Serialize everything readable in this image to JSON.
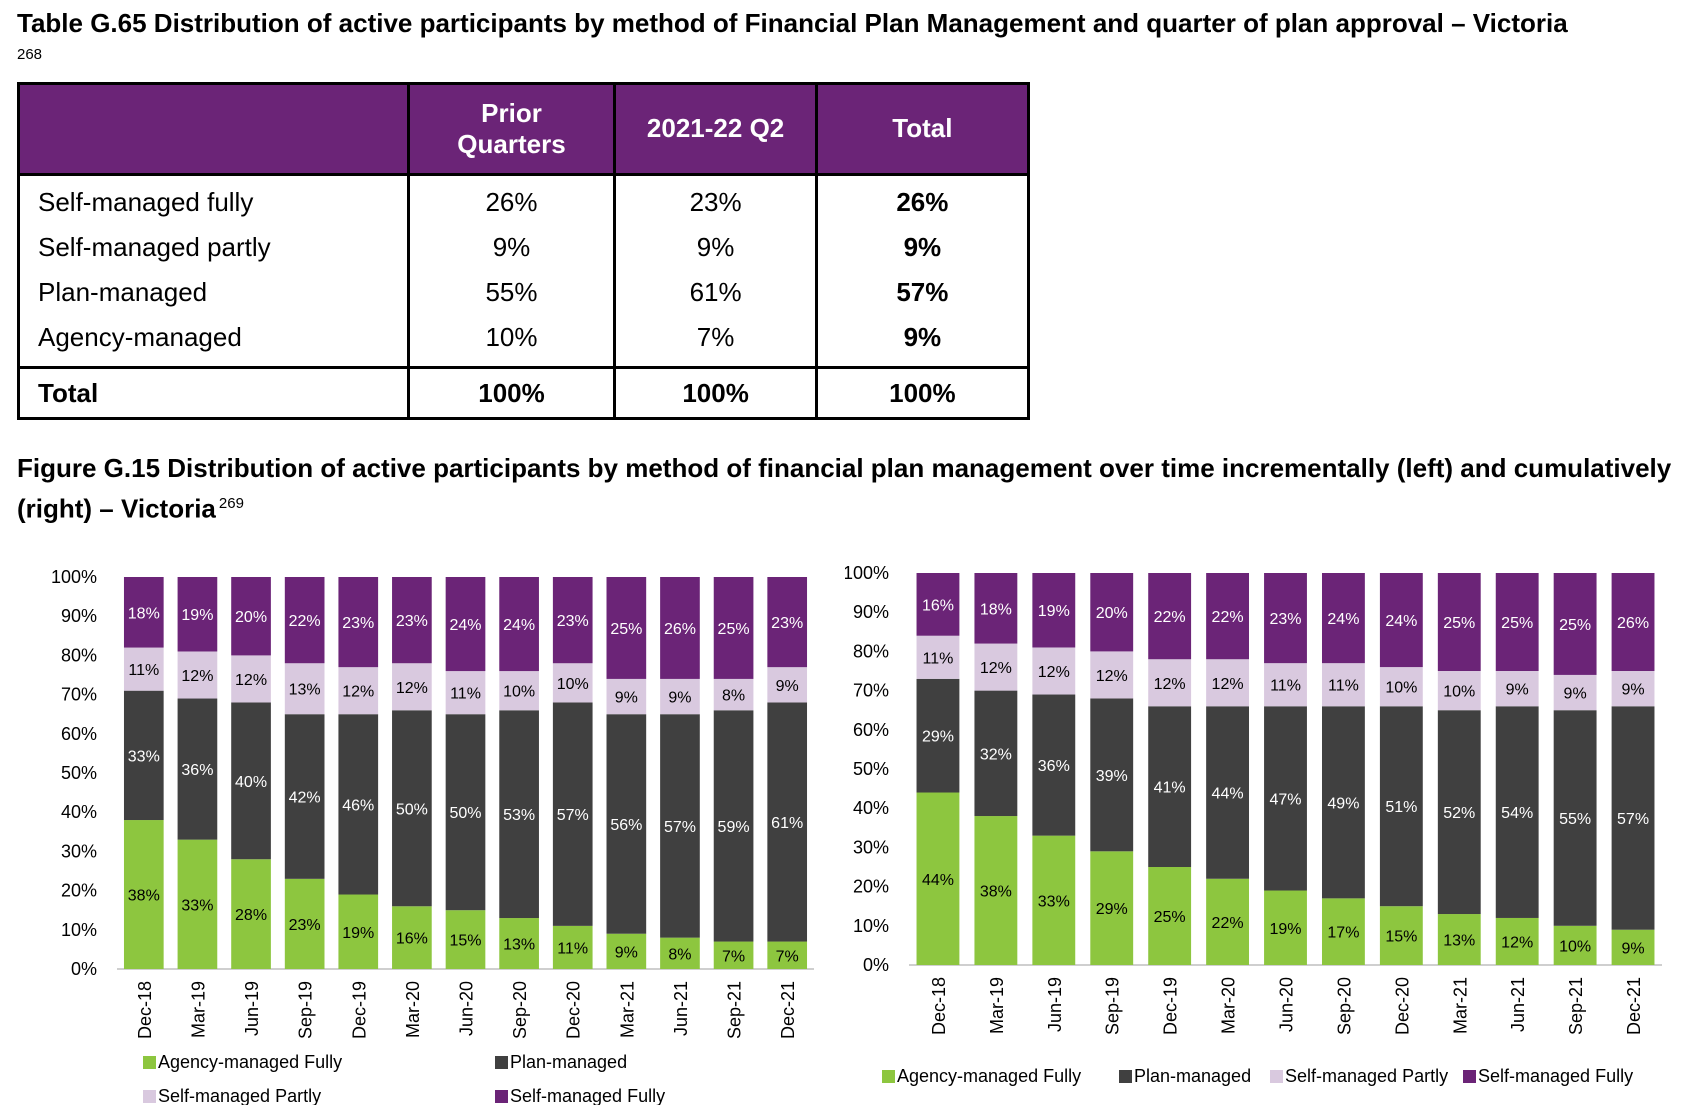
{
  "table": {
    "title": "Table G.65 Distribution of active participants by method of Financial Plan Management and quarter of plan approval – Victoria",
    "footnote": "268",
    "headers": [
      "",
      "Prior Quarters",
      "2021-22 Q2",
      "Total"
    ],
    "rows": [
      {
        "label": "Self-managed fully",
        "values": [
          "26%",
          "23%",
          "26%"
        ]
      },
      {
        "label": "Self-managed partly",
        "values": [
          "9%",
          "9%",
          "9%"
        ]
      },
      {
        "label": "Plan-managed",
        "values": [
          "55%",
          "61%",
          "57%"
        ]
      },
      {
        "label": "Agency-managed",
        "values": [
          "10%",
          "7%",
          "9%"
        ]
      }
    ],
    "total": {
      "label": "Total",
      "values": [
        "100%",
        "100%",
        "100%"
      ]
    }
  },
  "figure": {
    "title": "Figure G.15 Distribution of active participants by method of financial plan management over time incrementally (left) and cumulatively (right) – Victoria",
    "footnote": "269"
  },
  "colors": {
    "agency": "#8dc63f",
    "plan": "#404040",
    "self_partly": "#d9c9df",
    "self_fully": "#6b2477",
    "header_bg": "#6b2477"
  },
  "chart_data": [
    {
      "type": "bar",
      "stacked": true,
      "categories": [
        "Dec-18",
        "Mar-19",
        "Jun-19",
        "Sep-19",
        "Dec-19",
        "Mar-20",
        "Jun-20",
        "Sep-20",
        "Dec-20",
        "Mar-21",
        "Jun-21",
        "Sep-21",
        "Dec-21"
      ],
      "yticks": [
        "0%",
        "10%",
        "20%",
        "30%",
        "40%",
        "50%",
        "60%",
        "70%",
        "80%",
        "90%",
        "100%"
      ],
      "ylim": [
        0,
        100
      ],
      "legend_position": "bottom",
      "series": [
        {
          "name": "Agency-managed Fully",
          "values": [
            38,
            33,
            28,
            23,
            19,
            16,
            15,
            13,
            11,
            9,
            8,
            7,
            7
          ]
        },
        {
          "name": "Plan-managed",
          "values": [
            33,
            36,
            40,
            42,
            46,
            50,
            50,
            53,
            57,
            56,
            57,
            59,
            61
          ]
        },
        {
          "name": "Self-managed Partly",
          "values": [
            11,
            12,
            12,
            13,
            12,
            12,
            11,
            10,
            10,
            9,
            9,
            8,
            9
          ]
        },
        {
          "name": "Self-managed Fully",
          "values": [
            18,
            19,
            20,
            22,
            23,
            23,
            24,
            24,
            23,
            25,
            26,
            25,
            23
          ]
        }
      ]
    },
    {
      "type": "bar",
      "stacked": true,
      "categories": [
        "Dec-18",
        "Mar-19",
        "Jun-19",
        "Sep-19",
        "Dec-19",
        "Mar-20",
        "Jun-20",
        "Sep-20",
        "Dec-20",
        "Mar-21",
        "Jun-21",
        "Sep-21",
        "Dec-21"
      ],
      "yticks": [
        "0%",
        "10%",
        "20%",
        "30%",
        "40%",
        "50%",
        "60%",
        "70%",
        "80%",
        "90%",
        "100%"
      ],
      "ylim": [
        0,
        100
      ],
      "legend_position": "bottom",
      "series": [
        {
          "name": "Agency-managed Fully",
          "values": [
            44,
            38,
            33,
            29,
            25,
            22,
            19,
            17,
            15,
            13,
            12,
            10,
            9
          ]
        },
        {
          "name": "Plan-managed",
          "values": [
            29,
            32,
            36,
            39,
            41,
            44,
            47,
            49,
            51,
            52,
            54,
            55,
            57
          ]
        },
        {
          "name": "Self-managed Partly",
          "values": [
            11,
            12,
            12,
            12,
            12,
            12,
            11,
            11,
            10,
            10,
            9,
            9,
            9
          ]
        },
        {
          "name": "Self-managed Fully",
          "values": [
            16,
            18,
            19,
            20,
            22,
            22,
            23,
            24,
            24,
            25,
            25,
            25,
            26
          ]
        }
      ]
    }
  ]
}
